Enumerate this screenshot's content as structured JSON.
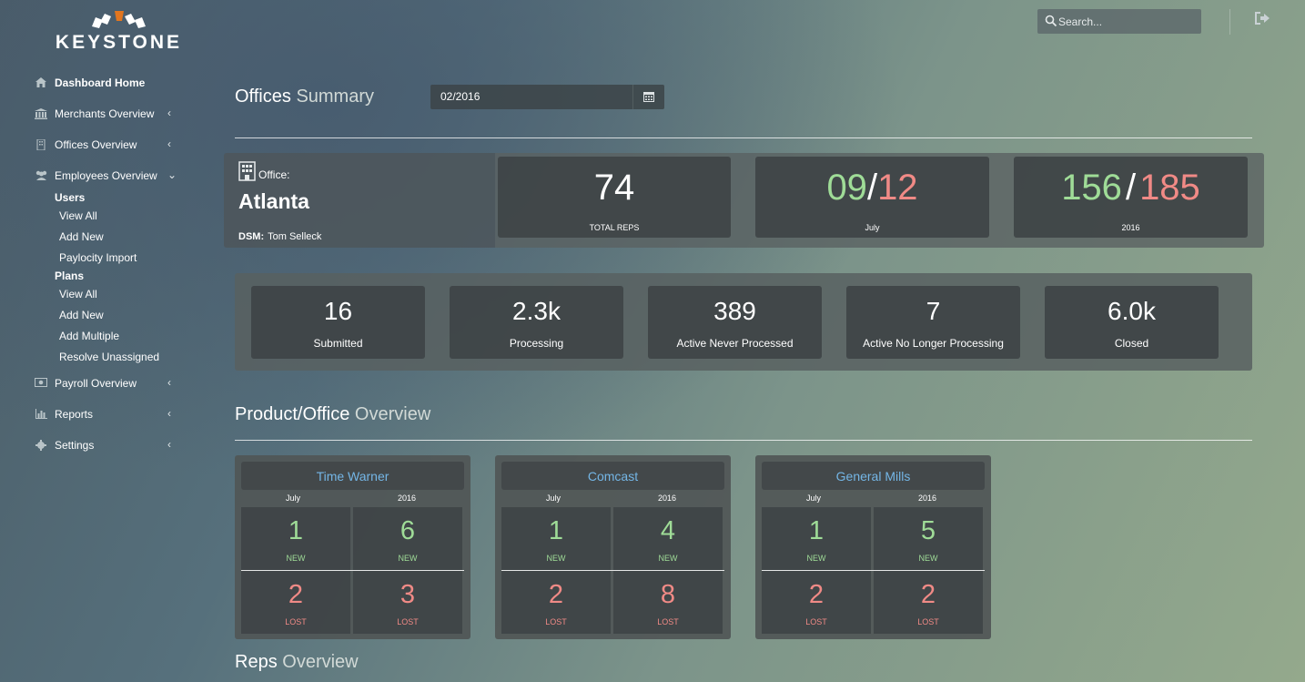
{
  "brand": {
    "name": "KEYSTONE",
    "accent": "#e2761f"
  },
  "sidebar": {
    "items": [
      {
        "label": "Dashboard Home",
        "icon": "home-icon"
      },
      {
        "label": "Merchants Overview",
        "icon": "bank-icon",
        "chevron": "‹"
      },
      {
        "label": "Offices Overview",
        "icon": "building-icon",
        "chevron": "‹"
      },
      {
        "label": "Employees Overview",
        "icon": "users-icon",
        "chevron": "⌄"
      },
      {
        "label": "Payroll Overview",
        "icon": "money-icon",
        "chevron": "‹"
      },
      {
        "label": "Reports",
        "icon": "bar-chart-icon",
        "chevron": "‹"
      },
      {
        "label": "Settings",
        "icon": "gear-icon",
        "chevron": "‹"
      }
    ],
    "users": {
      "heading": "Users",
      "items": [
        "View All",
        "Add New",
        "Paylocity Import"
      ]
    },
    "plans": {
      "heading": "Plans",
      "items": [
        "View All",
        "Add New",
        "Add Multiple",
        "Resolve Unassigned"
      ]
    }
  },
  "topbar": {
    "search_placeholder": "Search..."
  },
  "offices_summary": {
    "title_main": "Offices",
    "title_light": "Summary",
    "date": "02/2016",
    "office_label": "Office:",
    "office_name": "Atlanta",
    "dsm_label": "DSM:",
    "dsm_name": "Tom Selleck",
    "total_reps": {
      "value": "74",
      "caption": "TOTAL REPS"
    },
    "month_ratio": {
      "green": "09",
      "sep": "/",
      "red": "12",
      "caption": "July"
    },
    "year_ratio": {
      "green": "156",
      "sep": "/",
      "red": "185",
      "caption": "2016"
    }
  },
  "pipeline": [
    {
      "value": "16",
      "label": "Submitted"
    },
    {
      "value": "2.3k",
      "label": "Processing"
    },
    {
      "value": "389",
      "label": "Active Never Processed"
    },
    {
      "value": "7",
      "label": "Active No Longer Processing"
    },
    {
      "value": "6.0k",
      "label": "Closed"
    }
  ],
  "product_overview": {
    "title_main": "Product/Office",
    "title_light": "Overview",
    "col_month": "July",
    "col_year": "2016",
    "new_label": "NEW",
    "lost_label": "LOST",
    "products": [
      {
        "name": "Time Warner",
        "month_new": "1",
        "year_new": "6",
        "month_lost": "2",
        "year_lost": "3"
      },
      {
        "name": "Comcast",
        "month_new": "1",
        "year_new": "4",
        "month_lost": "2",
        "year_lost": "8"
      },
      {
        "name": "General Mills",
        "month_new": "1",
        "year_new": "5",
        "month_lost": "2",
        "year_lost": "2"
      }
    ]
  },
  "reps_overview": {
    "title_main": "Reps",
    "title_light": "Overview"
  },
  "colors": {
    "green": "#9fdc97",
    "red": "#f08a86",
    "link": "#74b6e6"
  }
}
